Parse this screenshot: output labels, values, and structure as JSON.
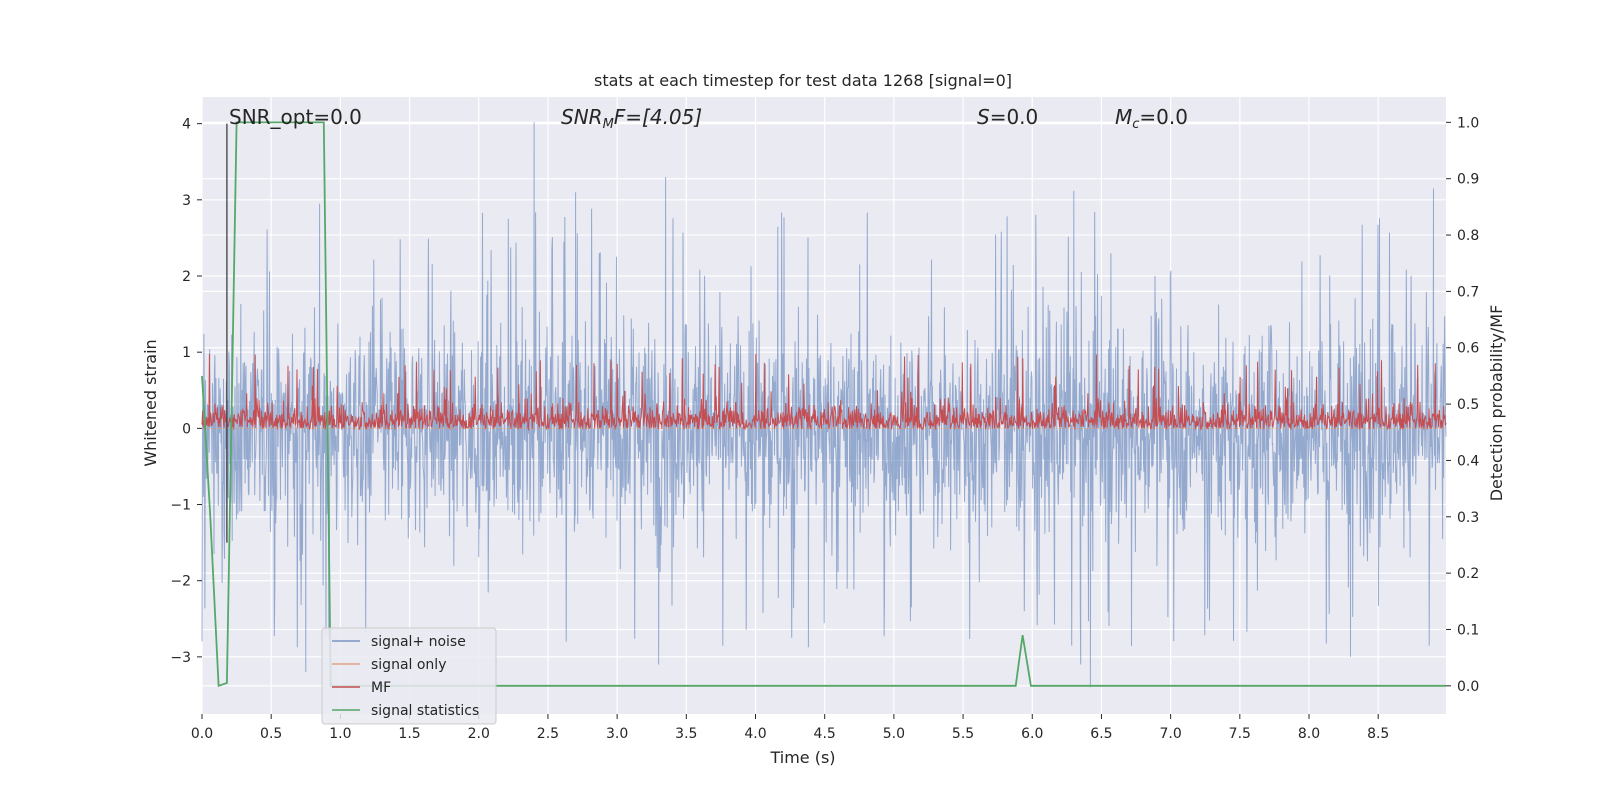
{
  "chart_data": {
    "type": "line",
    "title": "stats at each timestep for test data 1268 [signal=0]",
    "xlabel": "Time (s)",
    "ylabel": "Whitened strain",
    "ylabel_right": "Detection probability/MF",
    "xlim": [
      0.0,
      8.99
    ],
    "ylim": [
      -3.75,
      4.35
    ],
    "ylim_right": [
      -0.05,
      1.045
    ],
    "x_ticks": [
      0.0,
      0.5,
      1.0,
      1.5,
      2.0,
      2.5,
      3.0,
      3.5,
      4.0,
      4.5,
      5.0,
      5.5,
      6.0,
      6.5,
      7.0,
      7.5,
      8.0,
      8.5
    ],
    "x_tick_labels": [
      "0.0",
      "0.5",
      "1.0",
      "1.5",
      "2.0",
      "2.5",
      "3.0",
      "3.5",
      "4.0",
      "4.5",
      "5.0",
      "5.5",
      "6.0",
      "6.5",
      "7.0",
      "7.5",
      "8.0",
      "8.5"
    ],
    "y_ticks": [
      -3,
      -2,
      -1,
      0,
      1,
      2,
      3,
      4
    ],
    "y_tick_labels": [
      "−3",
      "−2",
      "−1",
      "0",
      "1",
      "2",
      "3",
      "4"
    ],
    "y_ticks_right": [
      0.0,
      0.1,
      0.2,
      0.3,
      0.4,
      0.5,
      0.6,
      0.7,
      0.8,
      0.9,
      1.0
    ],
    "y_tick_labels_right": [
      "0.0",
      "0.1",
      "0.2",
      "0.3",
      "0.4",
      "0.5",
      "0.6",
      "0.7",
      "0.8",
      "0.9",
      "1.0"
    ],
    "grid": true,
    "legend_placement": "lower-left",
    "annotations": {
      "snr_opt": "SNR_opt=0.0",
      "snr_mf_base": "SNR",
      "snr_mf_sub": "M",
      "snr_mf_rest": "F=[4.05]",
      "s_base": "S",
      "s_rest": "=0.0",
      "mc_base": "M",
      "mc_sub": "c",
      "mc_rest": "=0.0"
    },
    "series": [
      {
        "name": "signal+ noise",
        "axis": "left",
        "color": "#4c72b0",
        "style": "dense noise, approx. range -3.4 to 4.0, sample rate ~2048 Hz",
        "peaks": [
          [
            2.4,
            4.02
          ],
          [
            3.35,
            3.3
          ],
          [
            6.3,
            3.12
          ],
          [
            8.9,
            3.15
          ],
          [
            0.85,
            2.95
          ],
          [
            2.7,
            3.1
          ]
        ],
        "troughs": [
          [
            6.42,
            -3.4
          ],
          [
            3.3,
            -3.1
          ],
          [
            0.75,
            -3.2
          ],
          [
            8.3,
            -3.0
          ],
          [
            6.35,
            -3.1
          ]
        ]
      },
      {
        "name": "signal only",
        "axis": "left",
        "color": "#dd8452",
        "x": [
          0.0,
          8.99
        ],
        "y": [
          0.0,
          0.0
        ]
      },
      {
        "name": "MF",
        "axis": "right",
        "color": "#c44e52",
        "style": "dense trace, approx. range 0.42 to 0.60, baseline ~0.47"
      },
      {
        "name": "signal statistics",
        "axis": "right",
        "color": "#55a868",
        "x": [
          0.0,
          0.06,
          0.12,
          0.18,
          0.25,
          0.88,
          0.93,
          0.99,
          5.88,
          5.93,
          5.99,
          8.99
        ],
        "y": [
          0.55,
          0.3,
          0.0,
          0.005,
          1.0,
          1.0,
          0.0,
          0.0,
          0.0,
          0.09,
          0.0,
          0.0
        ]
      }
    ],
    "vertical_marker": {
      "x": 0.18,
      "color": "#333333"
    }
  }
}
